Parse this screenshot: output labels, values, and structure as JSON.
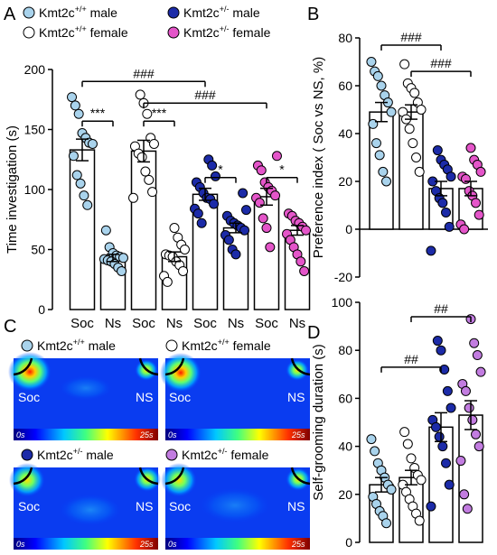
{
  "figure": {
    "panel_letters": [
      "A",
      "B",
      "C",
      "D"
    ],
    "genotype_prefix": "Kmt2c",
    "colors": {
      "wt_male": "#a9d3ec",
      "wt_female": "#ffffff",
      "het_male": "#1c2ba8",
      "het_female": "#e455c9",
      "het_female_light": "#c27ce0",
      "bar_fill": "#ffffff",
      "axis": "#000000"
    }
  },
  "legend_A": [
    {
      "gene": "Kmt2c",
      "sup": "+/+",
      "sex": "male",
      "color_key": "wt_male"
    },
    {
      "gene": "Kmt2c",
      "sup": "+/-",
      "sex": "male",
      "color_key": "het_male"
    },
    {
      "gene": "Kmt2c",
      "sup": "+/+",
      "sex": "female",
      "color_key": "wt_female"
    },
    {
      "gene": "Kmt2c",
      "sup": "+/-",
      "sex": "female",
      "color_key": "het_female"
    }
  ],
  "legend_C": [
    {
      "gene": "Kmt2c",
      "sup": "+/+",
      "sex": "male",
      "color_key": "wt_male"
    },
    {
      "gene": "Kmt2c",
      "sup": "+/+",
      "sex": "female",
      "color_key": "wt_female"
    },
    {
      "gene": "Kmt2c",
      "sup": "+/-",
      "sex": "male",
      "color_key": "het_male"
    },
    {
      "gene": "Kmt2c",
      "sup": "+/-",
      "sex": "female",
      "color_key": "het_female_light"
    }
  ],
  "heatmaps": {
    "left_label": "Soc",
    "right_label": "NS",
    "scale_start": "0s",
    "scale_end": "25s"
  },
  "chart_data": [
    {
      "panel": "A",
      "type": "bar",
      "ylabel": "Time investigation (s)",
      "ylim": [
        0,
        200
      ],
      "yticks": [
        0,
        50,
        100,
        150,
        200
      ],
      "categories": [
        "Soc",
        "Ns",
        "Soc",
        "Ns",
        "Soc",
        "Ns",
        "Soc",
        "Ns"
      ],
      "group_colors": [
        "wt_male",
        "wt_male",
        "wt_female",
        "wt_female",
        "het_male",
        "het_male",
        "het_female",
        "het_female"
      ],
      "values": [
        133,
        43,
        132,
        44,
        96,
        68,
        94,
        66
      ],
      "errors": [
        9,
        3,
        9,
        4,
        5,
        4,
        7,
        4
      ],
      "points": [
        [
          177,
          170,
          163,
          147,
          143,
          139,
          138,
          128,
          112,
          105,
          95,
          87
        ],
        [
          66,
          52,
          47,
          45,
          44,
          43,
          42,
          41,
          40,
          38,
          35,
          32
        ],
        [
          179,
          172,
          163,
          143,
          138,
          136,
          130,
          127,
          115,
          108,
          98,
          93
        ],
        [
          68,
          60,
          54,
          50,
          46,
          45,
          44,
          40,
          37,
          32,
          28,
          23
        ],
        [
          125,
          120,
          111,
          106,
          102,
          97,
          93,
          92,
          88,
          84,
          80,
          72
        ],
        [
          97,
          83,
          78,
          74,
          72,
          70,
          68,
          66,
          62,
          58,
          50,
          46
        ],
        [
          128,
          120,
          116,
          106,
          102,
          99,
          95,
          93,
          89,
          76,
          68,
          52
        ],
        [
          80,
          78,
          74,
          72,
          69,
          66,
          63,
          58,
          52,
          46,
          40,
          32
        ]
      ],
      "significance": [
        {
          "from": 0,
          "to": 1,
          "label": "***",
          "y": 157
        },
        {
          "from": 2,
          "to": 3,
          "label": "***",
          "y": 157
        },
        {
          "from": 4,
          "to": 5,
          "label": "*",
          "y": 110
        },
        {
          "from": 6,
          "to": 7,
          "label": "*",
          "y": 110
        },
        {
          "from": 0,
          "to": 4,
          "label": "###",
          "y": 190
        },
        {
          "from": 2,
          "to": 6,
          "label": "###",
          "y": 172
        }
      ]
    },
    {
      "panel": "B",
      "type": "bar",
      "ylabel": "Preference index ( Soc vs NS, %)",
      "ylim": [
        -20,
        80
      ],
      "yticks": [
        -20,
        0,
        20,
        40,
        60,
        80
      ],
      "group_colors": [
        "wt_male",
        "wt_female",
        "het_male",
        "het_female"
      ],
      "values": [
        49,
        49,
        17,
        17
      ],
      "errors": [
        4,
        3,
        3,
        3
      ],
      "points": [
        [
          70,
          66,
          64,
          60,
          56,
          53,
          49,
          44,
          36,
          31,
          24,
          20
        ],
        [
          69,
          61,
          59,
          57,
          53,
          50,
          49,
          46,
          42,
          36,
          30,
          24
        ],
        [
          33,
          29,
          27,
          25,
          22,
          20,
          16,
          13,
          11,
          7,
          1,
          -9
        ],
        [
          34,
          29,
          27,
          24,
          22,
          21,
          16,
          14,
          11,
          6,
          2,
          0
        ]
      ],
      "significance": [
        {
          "from": 0,
          "to": 2,
          "label": "###",
          "y": 77
        },
        {
          "from": 1,
          "to": 3,
          "label": "###",
          "y": 66
        }
      ]
    },
    {
      "panel": "D",
      "type": "bar",
      "ylabel": "Self-grooming duration (s)",
      "ylim": [
        0,
        100
      ],
      "yticks": [
        0,
        20,
        40,
        60,
        80,
        100
      ],
      "group_colors": [
        "wt_male",
        "wt_female",
        "het_male",
        "het_female_light"
      ],
      "values": [
        24,
        27,
        48,
        53
      ],
      "errors": [
        3,
        3,
        6,
        6
      ],
      "points": [
        [
          43,
          38,
          33,
          30,
          27,
          24,
          22,
          19,
          16,
          13,
          11,
          8
        ],
        [
          46,
          41,
          35,
          31,
          28,
          26,
          24,
          21,
          18,
          15,
          12,
          9
        ],
        [
          84,
          80,
          72,
          63,
          56,
          51,
          48,
          44,
          40,
          33,
          24,
          15
        ],
        [
          93,
          83,
          78,
          71,
          66,
          63,
          56,
          51,
          45,
          40,
          34,
          20,
          14
        ]
      ],
      "significance": [
        {
          "from": 0,
          "to": 2,
          "label": "##",
          "y": 73
        },
        {
          "from": 1,
          "to": 3,
          "label": "##",
          "y": 94
        }
      ]
    }
  ]
}
